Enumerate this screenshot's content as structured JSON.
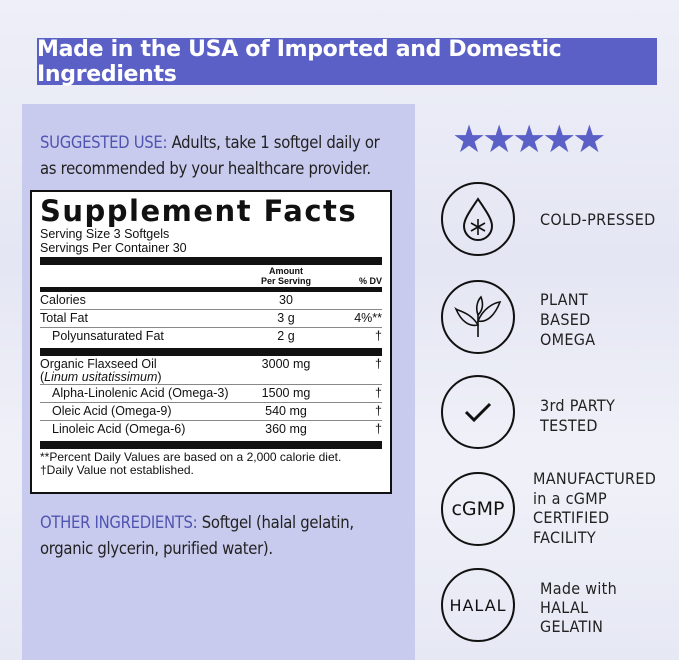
{
  "banner": "Made in the USA of Imported and Domestic Ingredients",
  "suggested_use": {
    "label": "SUGGESTED USE:",
    "text_line1": " Adults, take 1 softgel daily or",
    "text_line2": "as recommended by your healthcare provider."
  },
  "facts": {
    "title": "Supplement Facts",
    "serving_size": "Serving Size 3 Softgels",
    "servings_per_container": "Servings Per Container 30",
    "col_amount_1": "Amount",
    "col_amount_2": "Per Serving",
    "col_dv": "% DV",
    "rows": [
      {
        "name": "Calories",
        "amount": "30",
        "dv": ""
      },
      {
        "name": "Total Fat",
        "amount": "3 g",
        "dv": "4%**"
      },
      {
        "name": "Polyunsaturated Fat",
        "amount": "2 g",
        "dv": "†"
      },
      {
        "name": "Organic Flaxseed Oil",
        "latin": "Linum usitatissimum",
        "amount": "3000 mg",
        "dv": "†"
      },
      {
        "name": "Alpha-Linolenic Acid (Omega-3)",
        "amount": "1500 mg",
        "dv": "†"
      },
      {
        "name": "Oleic Acid (Omega-9)",
        "amount": "540 mg",
        "dv": "†"
      },
      {
        "name": "Linoleic Acid (Omega-6)",
        "amount": "360 mg",
        "dv": "†"
      }
    ],
    "footnote1": "**Percent Daily Values are based on a 2,000 calorie diet.",
    "footnote2": "†Daily Value not established."
  },
  "other_ingredients": {
    "label": "OTHER INGREDIENTS:",
    "text_line1": " Softgel (halal gelatin,",
    "text_line2": "organic glycerin, purified water)."
  },
  "rating": {
    "stars": 5,
    "max": 5,
    "color": "#5b60c6"
  },
  "features": [
    {
      "icon": "snowflake-drop-icon",
      "lines": [
        "COLD-PRESSED"
      ]
    },
    {
      "icon": "leaf-icon",
      "lines": [
        "PLANT",
        "BASED",
        "OMEGA"
      ]
    },
    {
      "icon": "checkmark-icon",
      "lines": [
        "3rd PARTY",
        "TESTED"
      ]
    },
    {
      "icon": "cgmp-icon",
      "badge": "cGMP",
      "lines": [
        "MANUFACTURED",
        "in a cGMP",
        "CERTIFIED",
        "FACILITY"
      ]
    },
    {
      "icon": "halal-icon",
      "badge": "HALAL",
      "lines": [
        "Made with",
        "HALAL",
        "GELATIN"
      ]
    }
  ]
}
